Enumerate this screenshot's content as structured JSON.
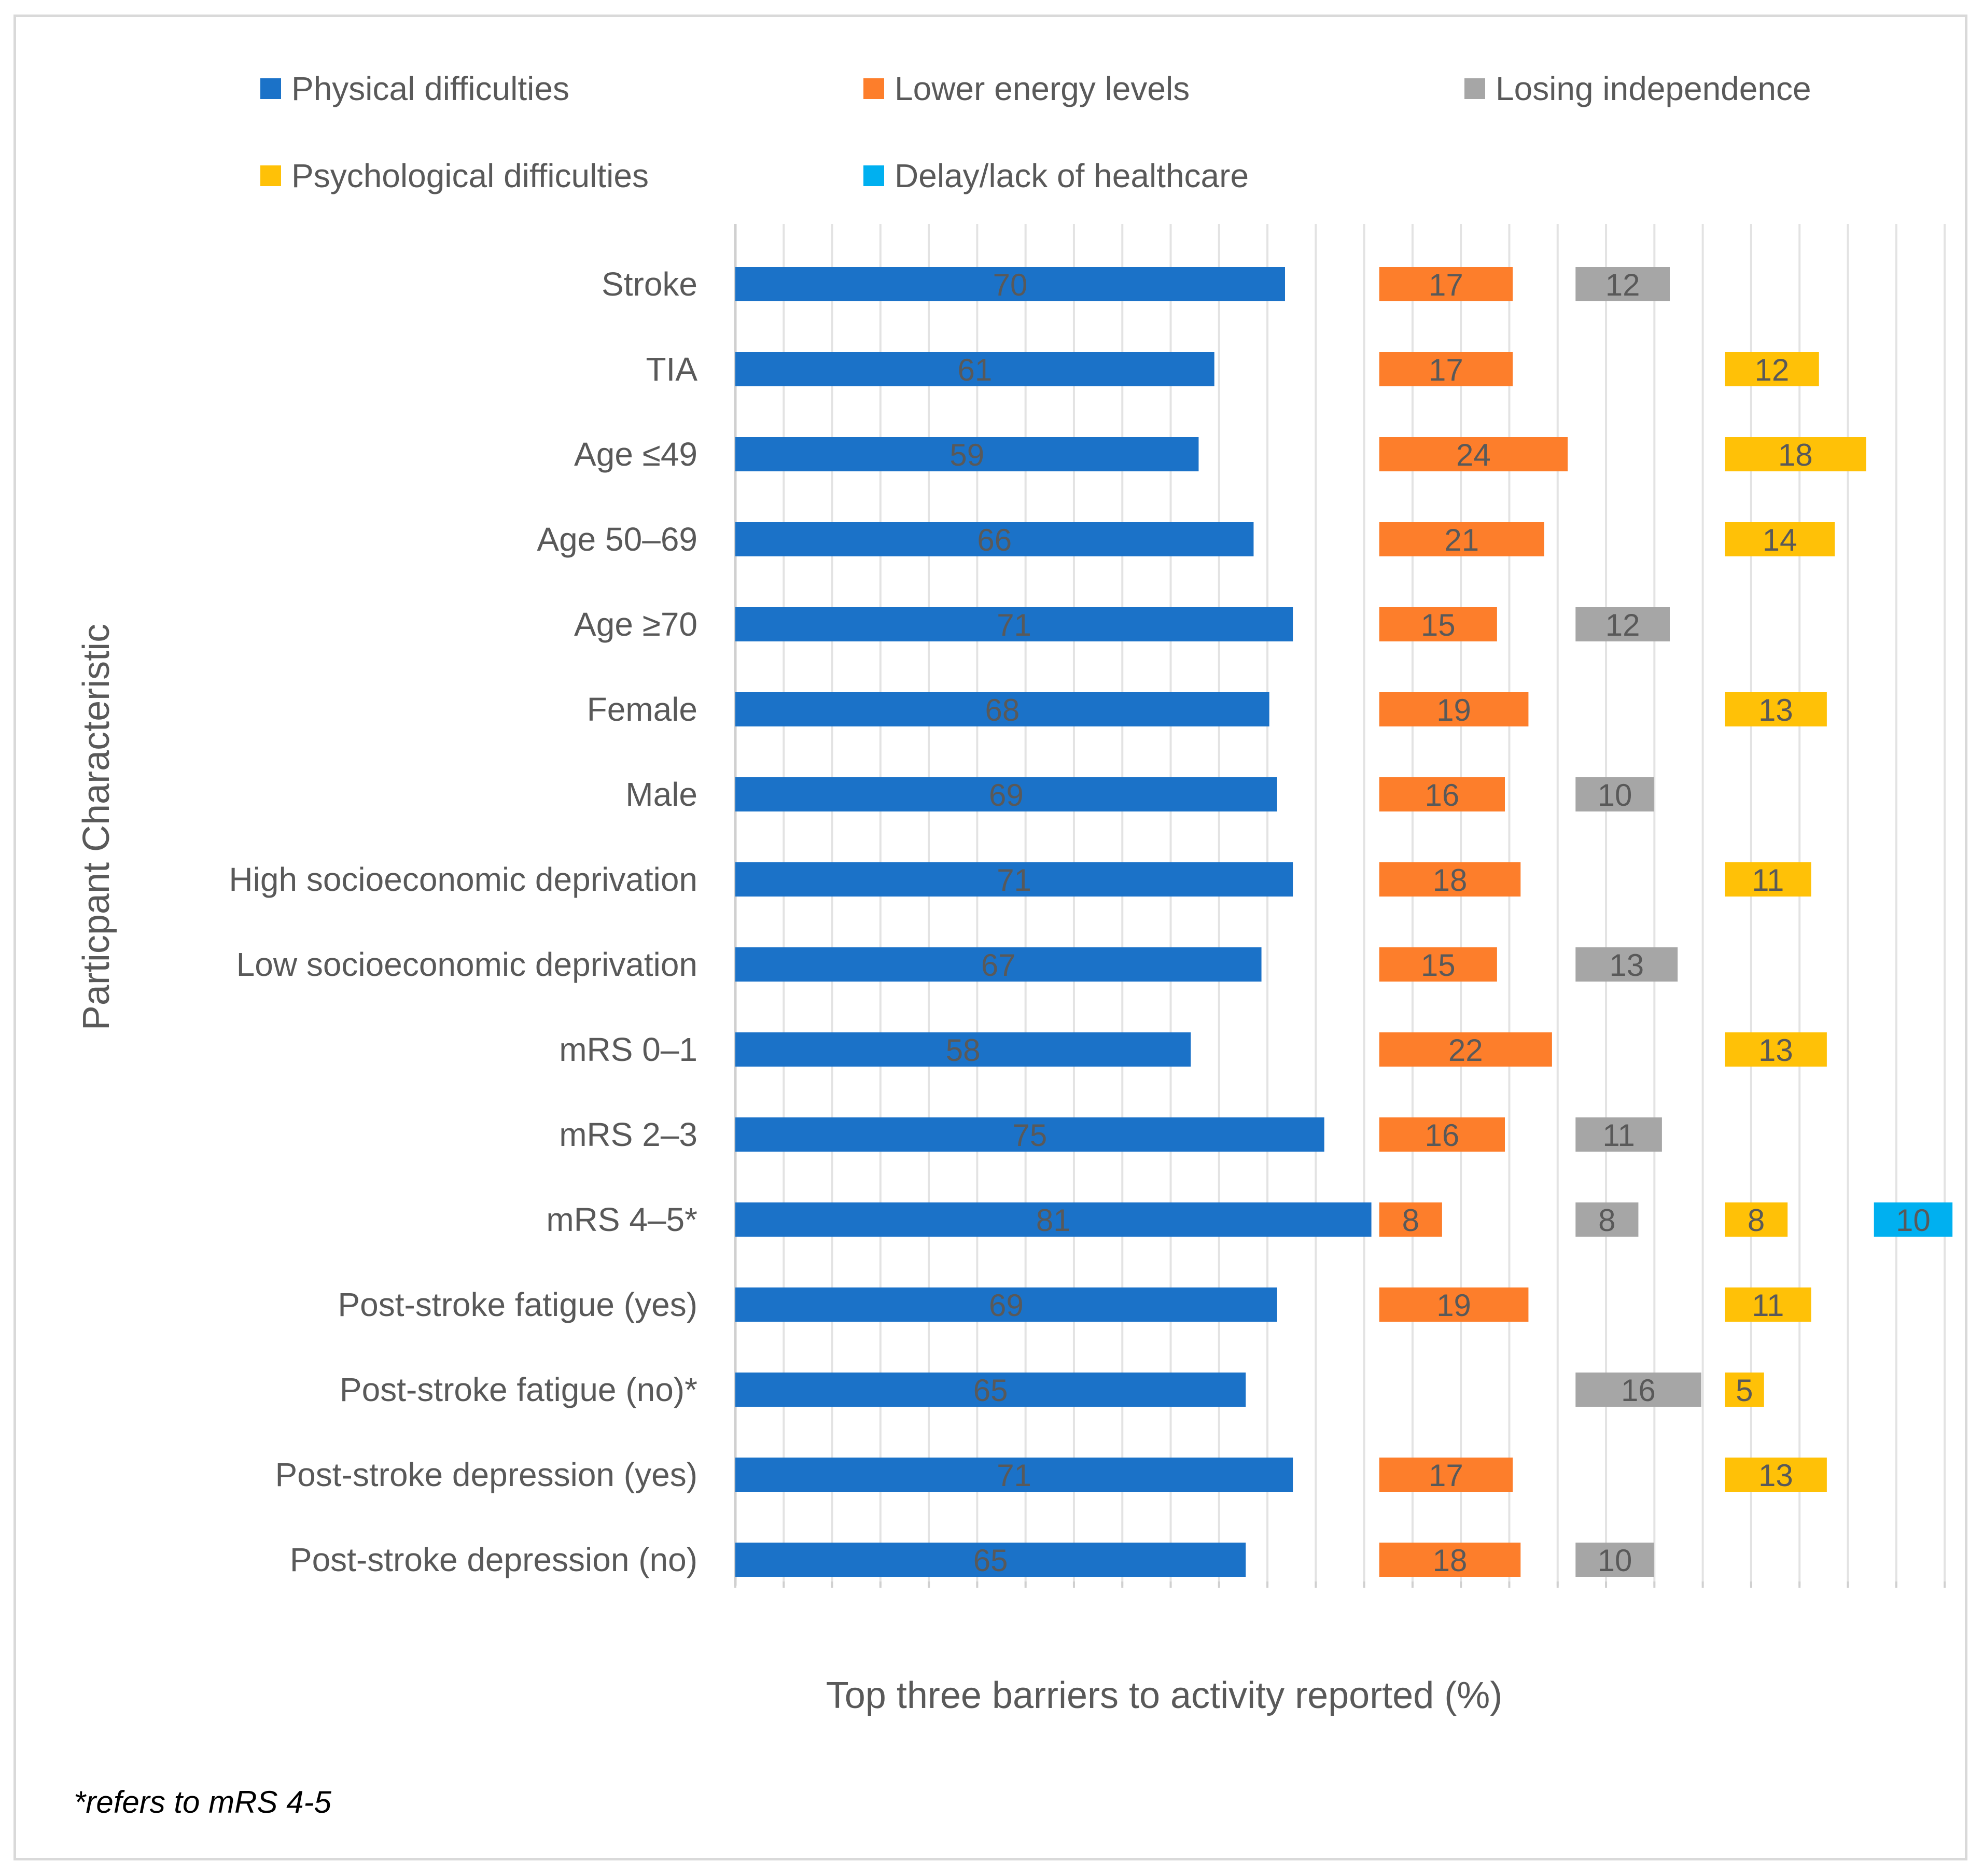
{
  "chart_data": {
    "type": "bar",
    "orientation": "horizontal",
    "stacked": true,
    "categories": [
      "Stroke",
      "TIA",
      "Age ≤49",
      "Age 50–69",
      "Age ≥70",
      "Female",
      "Male",
      "High socioeconomic deprivation",
      "Low socioeconomic deprivation",
      "mRS 0–1",
      "mRS 2–3",
      "mRS 4–5*",
      "Post-stroke fatigue (yes)",
      "Post-stroke fatigue (no)*",
      "Post-stroke depression (yes)",
      "Post-stroke depression (no)"
    ],
    "series": [
      {
        "name": "Physical difficulties",
        "color": "#1b72c8",
        "values": [
          70,
          61,
          59,
          66,
          71,
          68,
          69,
          71,
          67,
          58,
          75,
          81,
          69,
          65,
          71,
          65
        ]
      },
      {
        "name": "Lower energy levels",
        "color": "#fd7e2b",
        "values": [
          17,
          17,
          24,
          21,
          15,
          19,
          16,
          18,
          15,
          22,
          16,
          8,
          19,
          null,
          17,
          18
        ]
      },
      {
        "name": "Losing independence",
        "color": "#a6a6a6",
        "values": [
          12,
          null,
          null,
          null,
          12,
          null,
          10,
          null,
          13,
          null,
          11,
          8,
          null,
          16,
          null,
          10
        ]
      },
      {
        "name": "Psychological difficulties",
        "color": "#ffc107",
        "values": [
          null,
          12,
          18,
          14,
          null,
          13,
          null,
          11,
          null,
          13,
          null,
          8,
          11,
          5,
          13,
          null
        ]
      },
      {
        "name": "Delay/lack of healthcare",
        "color": "#00b0f0",
        "values": [
          null,
          null,
          null,
          null,
          null,
          null,
          null,
          null,
          null,
          null,
          null,
          10,
          null,
          null,
          null,
          null
        ]
      }
    ],
    "group_slots": [
      0,
      82,
      107,
      126,
      145
    ],
    "xlim": [
      0,
      154
    ],
    "grid_step": 6.16,
    "xlabel": "Top three barriers to activity reported (%)",
    "ylabel": "Particpant Characteristic",
    "legend_position": "top",
    "footnote": "*refers to mRS 4-5"
  }
}
